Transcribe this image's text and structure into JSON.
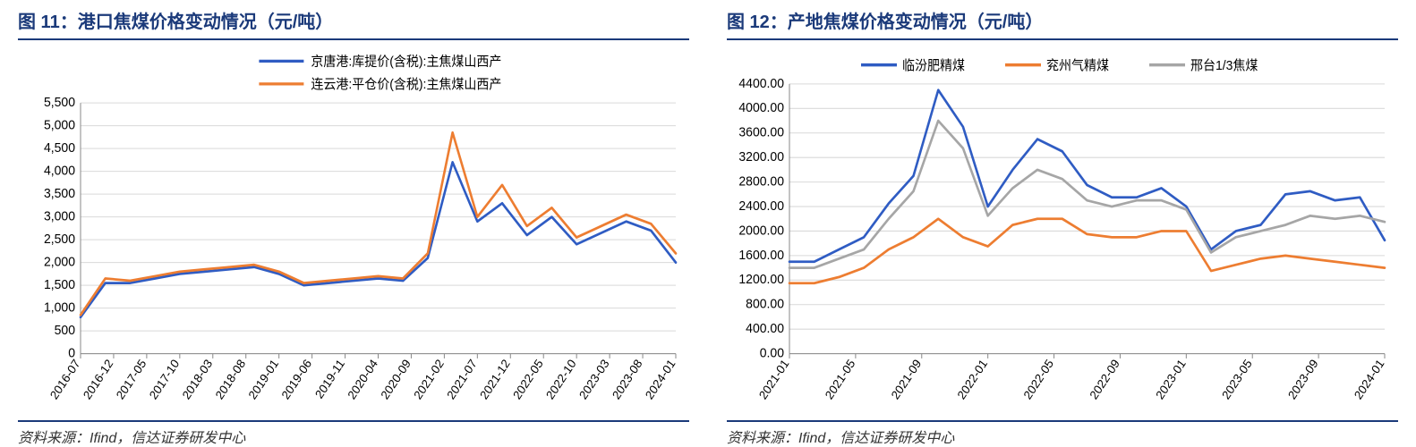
{
  "panels": [
    {
      "title": "图 11：港口焦煤价格变动情况（元/吨）",
      "source": "资料来源：Ifind，信达证券研发中心",
      "chart": {
        "type": "line",
        "background_color": "#ffffff",
        "grid_color": "#d9d9d9",
        "axis_color": "#888888",
        "ylim": [
          0,
          5500
        ],
        "ytick_step": 500,
        "yticks": [
          0,
          500,
          1000,
          1500,
          2000,
          2500,
          3000,
          3500,
          4000,
          4500,
          5000,
          5500
        ],
        "ytick_labels": [
          "0",
          "500",
          "1,000",
          "1,500",
          "2,000",
          "2,500",
          "3,000",
          "3,500",
          "4,000",
          "4,500",
          "5,000",
          "5,500"
        ],
        "xtick_labels": [
          "2016-07",
          "2016-12",
          "2017-05",
          "2017-10",
          "2018-03",
          "2018-08",
          "2019-01",
          "2019-06",
          "2019-11",
          "2020-04",
          "2020-09",
          "2021-02",
          "2021-07",
          "2021-12",
          "2022-05",
          "2022-10",
          "2023-03",
          "2023-08",
          "2024-01"
        ],
        "label_fontsize": 14,
        "series": [
          {
            "name": "京唐港:库提价(含税):主焦煤山西产",
            "color": "#2f5cc3",
            "line_width": 2.6,
            "values": [
              800,
              1550,
              1550,
              1650,
              1750,
              1800,
              1850,
              1900,
              1750,
              1500,
              1550,
              1600,
              1650,
              1600,
              2100,
              4200,
              2900,
              3300,
              2600,
              3000,
              2400,
              2650,
              2900,
              2700,
              2000
            ]
          },
          {
            "name": "连云港:平仓价(含税):主焦煤山西产",
            "color": "#ed7d31",
            "line_width": 2.6,
            "values": [
              850,
              1650,
              1600,
              1700,
              1800,
              1850,
              1900,
              1950,
              1800,
              1550,
              1600,
              1650,
              1700,
              1650,
              2200,
              4850,
              3000,
              3700,
              2800,
              3200,
              2550,
              2800,
              3050,
              2850,
              2200
            ]
          }
        ]
      }
    },
    {
      "title": "图 12：产地焦煤价格变动情况（元/吨）",
      "source": "资料来源：Ifind，信达证券研发中心",
      "chart": {
        "type": "line",
        "background_color": "#ffffff",
        "grid_color": "#d9d9d9",
        "axis_color": "#888888",
        "ylim": [
          0,
          4400
        ],
        "ytick_step": 400,
        "yticks": [
          0,
          400,
          800,
          1200,
          1600,
          2000,
          2400,
          2800,
          3200,
          3600,
          4000,
          4400
        ],
        "ytick_labels": [
          "0.00",
          "400.00",
          "800.00",
          "1200.00",
          "1600.00",
          "2000.00",
          "2400.00",
          "2800.00",
          "3200.00",
          "3600.00",
          "4000.00",
          "4400.00"
        ],
        "xtick_labels": [
          "2021-01",
          "2021-05",
          "2021-09",
          "2022-01",
          "2022-05",
          "2022-09",
          "2023-01",
          "2023-05",
          "2023-09",
          "2024-01"
        ],
        "label_fontsize": 14,
        "series": [
          {
            "name": "临汾肥精煤",
            "color": "#2f5cc3",
            "line_width": 2.8,
            "values": [
              1500,
              1500,
              1700,
              1900,
              2450,
              2900,
              4300,
              3700,
              2400,
              3000,
              3500,
              3300,
              2750,
              2550,
              2550,
              2700,
              2400,
              1700,
              2000,
              2100,
              2600,
              2650,
              2500,
              2550,
              1850
            ]
          },
          {
            "name": "兖州气精煤",
            "color": "#ed7d31",
            "line_width": 2.8,
            "values": [
              1150,
              1150,
              1250,
              1400,
              1700,
              1900,
              2200,
              1900,
              1750,
              2100,
              2200,
              2200,
              1950,
              1900,
              1900,
              2000,
              2000,
              1350,
              1450,
              1550,
              1600,
              1550,
              1500,
              1450,
              1400
            ]
          },
          {
            "name": "邢台1/3焦煤",
            "color": "#a6a6a6",
            "line_width": 2.8,
            "values": [
              1400,
              1400,
              1550,
              1700,
              2200,
              2650,
              3800,
              3350,
              2250,
              2700,
              3000,
              2850,
              2500,
              2400,
              2500,
              2500,
              2350,
              1650,
              1900,
              2000,
              2100,
              2250,
              2200,
              2250,
              2150
            ]
          }
        ]
      }
    }
  ]
}
